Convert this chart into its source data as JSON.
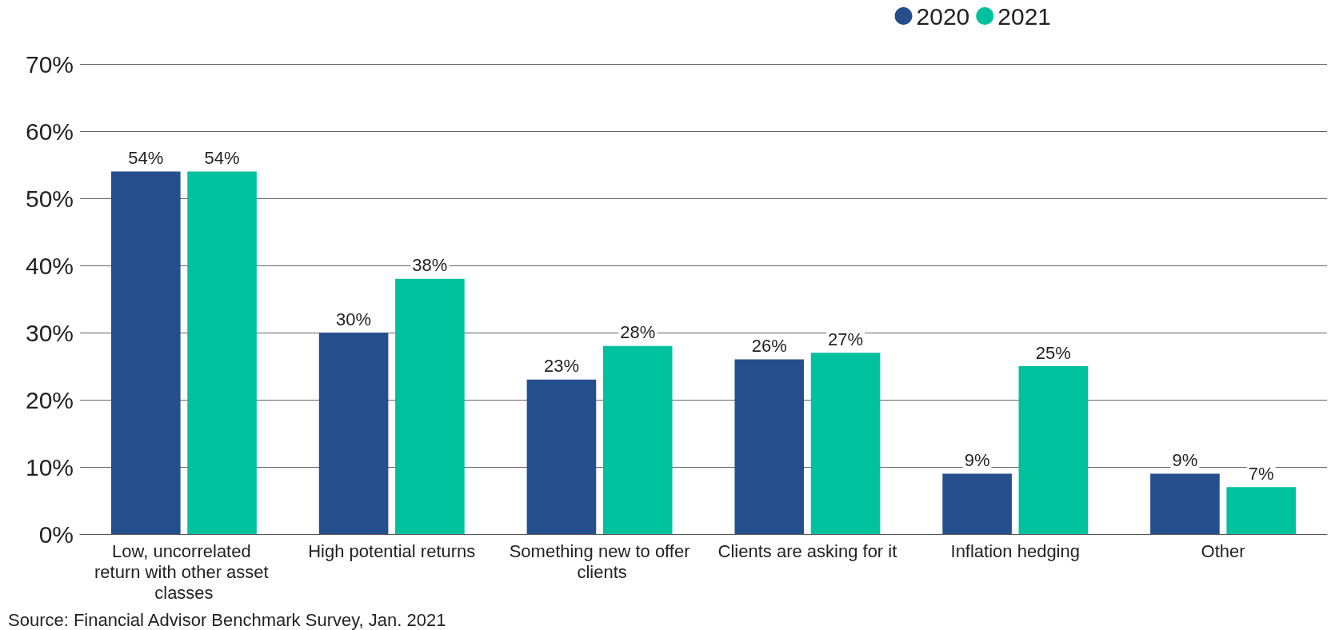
{
  "chart_data": {
    "type": "bar",
    "categories": [
      "Low, uncorrelated return with other asset classes",
      "High potential returns",
      "Something new to offer clients",
      "Clients are asking for it",
      "Inflation hedging",
      "Other"
    ],
    "series": [
      {
        "name": "2020",
        "color": "#244f8c",
        "values": [
          54,
          30,
          23,
          26,
          9,
          9
        ],
        "value_labels": [
          "54%",
          "30%",
          "23%",
          "26%",
          "9%",
          "9%"
        ]
      },
      {
        "name": "2021",
        "color": "#00c19e",
        "values": [
          54,
          38,
          28,
          27,
          25,
          7
        ],
        "value_labels": [
          "54%",
          "38%",
          "28%",
          "27%",
          "25%",
          "7%"
        ]
      }
    ],
    "ylim": [
      0,
      70
    ],
    "yticks": [
      {
        "value": 0,
        "label": "0%"
      },
      {
        "value": 10,
        "label": "10%"
      },
      {
        "value": 20,
        "label": "20%"
      },
      {
        "value": 30,
        "label": "30%"
      },
      {
        "value": 40,
        "label": "40%"
      },
      {
        "value": 50,
        "label": "50%"
      },
      {
        "value": 60,
        "label": "60%"
      },
      {
        "value": 70,
        "label": "70%"
      }
    ],
    "grid": "y",
    "legend": "top right",
    "annotations": [
      "Source: Financial Advisor Benchmark Survey, Jan. 2021"
    ]
  }
}
